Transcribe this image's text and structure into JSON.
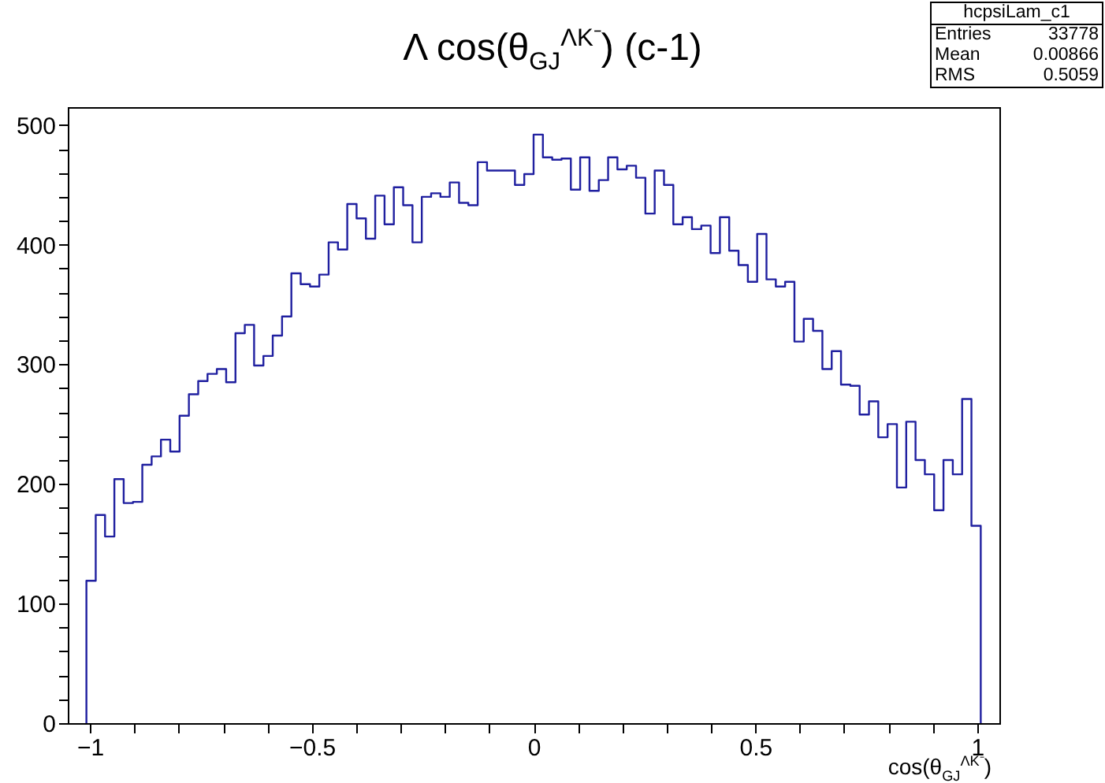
{
  "chart_data": {
    "type": "histogram",
    "title": "Λ cos(θ$_{GJ}$$^{ΛK⁻}$) (c-1)",
    "xlabel": "cos(θ$_{GJ}$$^{ΛK⁻}$)",
    "annotations": [
      "hcpsiLam_c1",
      "Entries 33778",
      "Mean 0.00866",
      "RMS 0.5059"
    ],
    "bins": [
      -1.008,
      -0.987,
      -0.966,
      -0.945,
      -0.924,
      -0.903,
      -0.882,
      -0.861,
      -0.84,
      -0.819,
      -0.798,
      -0.777,
      -0.756,
      -0.735,
      -0.714,
      -0.693,
      -0.672,
      -0.651,
      -0.63,
      -0.609,
      -0.588,
      -0.567,
      -0.546,
      -0.525,
      -0.504,
      -0.483,
      -0.462,
      -0.441,
      -0.42,
      -0.399,
      -0.378,
      -0.357,
      -0.336,
      -0.315,
      -0.294,
      -0.273,
      -0.252,
      -0.231,
      -0.21,
      -0.189,
      -0.168,
      -0.147,
      -0.126,
      -0.105,
      -0.084,
      -0.063,
      -0.042,
      -0.021,
      0,
      0.021,
      0.042,
      0.063,
      0.084,
      0.105,
      0.126,
      0.147,
      0.168,
      0.189,
      0.21,
      0.231,
      0.252,
      0.273,
      0.294,
      0.315,
      0.336,
      0.357,
      0.378,
      0.399,
      0.42,
      0.441,
      0.462,
      0.483,
      0.504,
      0.525,
      0.546,
      0.567,
      0.588,
      0.609,
      0.63,
      0.651,
      0.672,
      0.693,
      0.714,
      0.735,
      0.756,
      0.777,
      0.798,
      0.819,
      0.84,
      0.861,
      0.882,
      0.903,
      0.924,
      0.945,
      0.966,
      0.987,
      1.008
    ],
    "values": [
      119,
      174,
      156,
      204,
      184,
      185,
      216,
      223,
      237,
      227,
      257,
      275,
      286,
      292,
      296,
      285,
      326,
      333,
      299,
      307,
      324,
      340,
      376,
      367,
      365,
      375,
      402,
      396,
      434,
      422,
      405,
      441,
      417,
      448,
      433,
      402,
      440,
      443,
      440,
      452,
      435,
      433,
      469,
      462,
      462,
      462,
      450,
      459,
      492,
      473,
      471,
      472,
      446,
      473,
      445,
      454,
      473,
      463,
      466,
      456,
      426,
      462,
      450,
      417,
      423,
      413,
      416,
      393,
      423,
      395,
      383,
      369,
      409,
      371,
      365,
      369,
      319,
      338,
      328,
      296,
      311,
      283,
      282,
      258,
      269,
      239,
      250,
      197,
      252,
      220,
      208,
      178,
      220,
      208,
      271,
      165
    ],
    "color": "#2020a0",
    "xlim": [
      -1.05,
      1.05
    ],
    "xticks": [
      -1,
      {
        "value": -0.9,
        "label": null
      },
      {
        "value": -0.8,
        "label": null
      },
      {
        "value": -0.7,
        "label": null
      },
      {
        "value": -0.6,
        "label": null
      },
      -0.5,
      {
        "value": -0.4,
        "label": null
      },
      {
        "value": -0.3,
        "label": null
      },
      {
        "value": -0.2,
        "label": null
      },
      {
        "value": -0.1,
        "label": null
      },
      0,
      {
        "value": 0.1,
        "label": null
      },
      {
        "value": 0.2,
        "label": null
      },
      {
        "value": 0.3,
        "label": null
      },
      {
        "value": 0.4,
        "label": null
      },
      0.5,
      {
        "value": 0.6,
        "label": null
      },
      {
        "value": 0.7,
        "label": null
      },
      {
        "value": 0.8,
        "label": null
      },
      {
        "value": 0.9,
        "label": null
      },
      1
    ],
    "ylim": [
      0,
      515
    ],
    "yticks": [
      0,
      {
        "value": 20,
        "label": null
      },
      {
        "value": 40,
        "label": null
      },
      {
        "value": 60,
        "label": null
      },
      {
        "value": 80,
        "label": null
      },
      100,
      {
        "value": 120,
        "label": null
      },
      {
        "value": 140,
        "label": null
      },
      {
        "value": 160,
        "label": null
      },
      {
        "value": 180,
        "label": null
      },
      200,
      {
        "value": 220,
        "label": null
      },
      {
        "value": 240,
        "label": null
      },
      {
        "value": 260,
        "label": null
      },
      {
        "value": 280,
        "label": null
      },
      300,
      {
        "value": 320,
        "label": null
      },
      {
        "value": 340,
        "label": null
      },
      {
        "value": 360,
        "label": null
      },
      {
        "value": 380,
        "label": null
      },
      400,
      {
        "value": 420,
        "label": null
      },
      {
        "value": 440,
        "label": null
      },
      {
        "value": 460,
        "label": null
      },
      {
        "value": 480,
        "label": null
      },
      500
    ],
    "grid": false
  }
}
